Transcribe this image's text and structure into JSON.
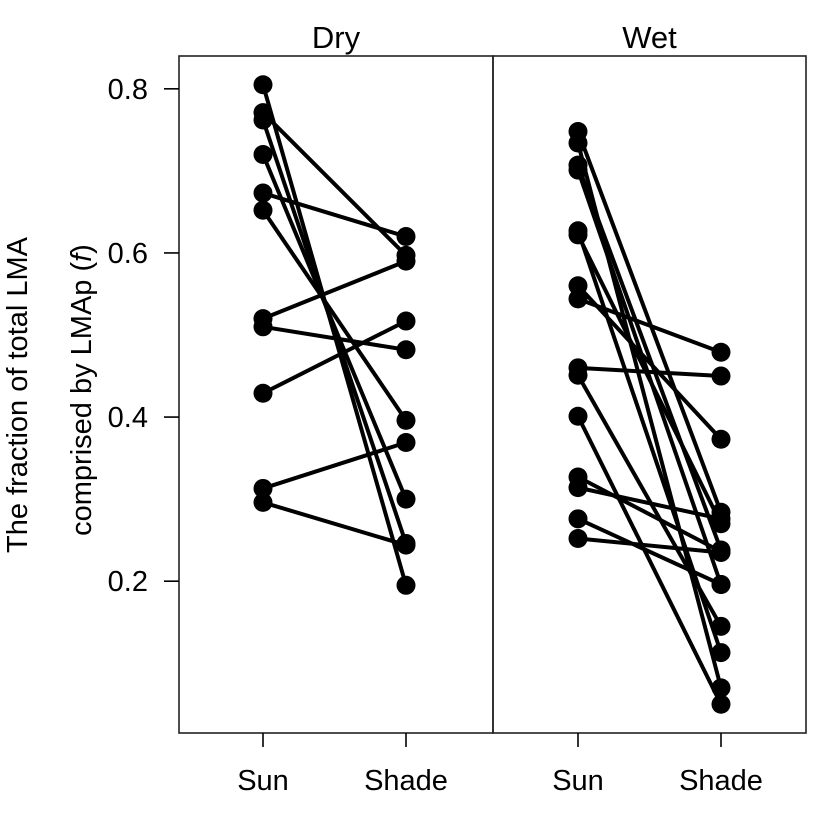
{
  "chart_data": {
    "type": "line",
    "ylabel_line1": "The fraction of total LMA",
    "ylabel_line2_prefix": "comprised by LMAp (",
    "ylabel_symbol": "f",
    "ylabel_line2_suffix": ")",
    "ylim": [
      0.015,
      0.84
    ],
    "yticks": [
      0.8,
      0.6,
      0.4,
      0.2
    ],
    "ytick_labels": [
      "0.8",
      "0.6",
      "0.4",
      "0.2"
    ],
    "categories": [
      "Sun",
      "Shade"
    ],
    "grid": false,
    "panels": [
      {
        "title": "Dry",
        "pairs": [
          [
            0.805,
            0.195
          ],
          [
            0.771,
            0.597
          ],
          [
            0.762,
            0.246
          ],
          [
            0.72,
            0.3
          ],
          [
            0.673,
            0.62
          ],
          [
            0.652,
            0.396
          ],
          [
            0.52,
            0.59
          ],
          [
            0.51,
            0.482
          ],
          [
            0.429,
            0.517
          ],
          [
            0.313,
            0.369
          ],
          [
            0.296,
            0.244
          ]
        ]
      },
      {
        "title": "Wet",
        "pairs": [
          [
            0.748,
            0.284
          ],
          [
            0.734,
            0.07
          ],
          [
            0.707,
            0.238
          ],
          [
            0.701,
            0.196
          ],
          [
            0.627,
            0.113
          ],
          [
            0.622,
            0.27
          ],
          [
            0.56,
            0.373
          ],
          [
            0.544,
            0.479
          ],
          [
            0.46,
            0.45
          ],
          [
            0.451,
            0.145
          ],
          [
            0.401,
            0.05
          ],
          [
            0.327,
            0.236
          ],
          [
            0.314,
            0.276
          ],
          [
            0.276,
            0.196
          ],
          [
            0.252,
            0.235
          ]
        ]
      }
    ]
  }
}
